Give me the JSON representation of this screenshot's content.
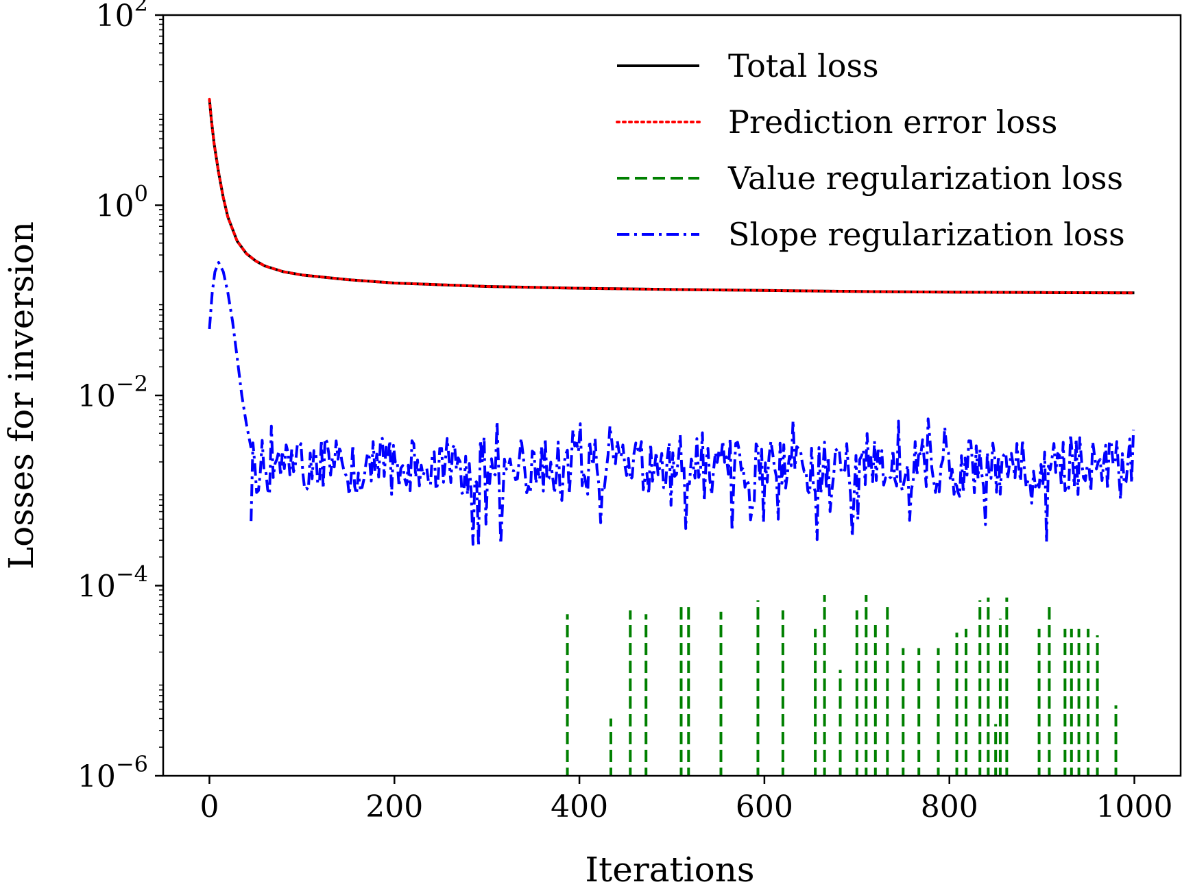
{
  "chart_data": {
    "type": "line",
    "xlabel": "Iterations",
    "ylabel": "Losses for inversion",
    "x_scale": "linear",
    "y_scale": "log",
    "xlim": [
      -50,
      1050
    ],
    "ylim": [
      1e-06,
      100
    ],
    "x_ticks": [
      0,
      200,
      400,
      600,
      800,
      1000
    ],
    "x_tick_labels": [
      "0",
      "200",
      "400",
      "600",
      "800",
      "1000"
    ],
    "y_ticks": [
      1e-06,
      0.0001,
      0.01,
      1,
      100
    ],
    "y_tick_labels": [
      {
        "base": "10",
        "exp": "−6"
      },
      {
        "base": "10",
        "exp": "−4"
      },
      {
        "base": "10",
        "exp": "−2"
      },
      {
        "base": "10",
        "exp": "0"
      },
      {
        "base": "10",
        "exp": "2"
      }
    ],
    "grid": false,
    "legend_position": "top-right",
    "series": [
      {
        "name": "Total loss",
        "color": "#000000",
        "style": "solid",
        "x": [
          0,
          2,
          5,
          10,
          15,
          20,
          30,
          40,
          50,
          60,
          80,
          100,
          150,
          200,
          300,
          400,
          500,
          600,
          700,
          800,
          900,
          1000
        ],
        "y": [
          13,
          8,
          4.5,
          2.2,
          1.2,
          0.75,
          0.42,
          0.31,
          0.26,
          0.23,
          0.2,
          0.185,
          0.165,
          0.152,
          0.14,
          0.134,
          0.13,
          0.127,
          0.124,
          0.122,
          0.121,
          0.12
        ]
      },
      {
        "name": "Prediction error loss",
        "color": "#ff0000",
        "style": "dotted",
        "x": [
          0,
          2,
          5,
          10,
          15,
          20,
          30,
          40,
          50,
          60,
          80,
          100,
          150,
          200,
          300,
          400,
          500,
          600,
          700,
          800,
          900,
          1000
        ],
        "y": [
          13,
          8,
          4.5,
          2.2,
          1.2,
          0.75,
          0.42,
          0.31,
          0.26,
          0.23,
          0.2,
          0.185,
          0.165,
          0.152,
          0.14,
          0.134,
          0.13,
          0.127,
          0.124,
          0.122,
          0.121,
          0.12
        ]
      },
      {
        "name": "Value regularization loss",
        "color": "#008000",
        "style": "dashed",
        "spikes": [
          {
            "x": 387,
            "y": 5e-05
          },
          {
            "x": 434,
            "y": 4e-06
          },
          {
            "x": 455,
            "y": 5.5e-05
          },
          {
            "x": 472,
            "y": 5e-05
          },
          {
            "x": 510,
            "y": 6e-05
          },
          {
            "x": 518,
            "y": 6e-05
          },
          {
            "x": 553,
            "y": 5.3e-05
          },
          {
            "x": 593,
            "y": 7e-05
          },
          {
            "x": 620,
            "y": 5.5e-05
          },
          {
            "x": 655,
            "y": 3.5e-05
          },
          {
            "x": 665,
            "y": 8e-05
          },
          {
            "x": 682,
            "y": 1.3e-05
          },
          {
            "x": 700,
            "y": 5.5e-05
          },
          {
            "x": 710,
            "y": 8e-05
          },
          {
            "x": 720,
            "y": 4e-05
          },
          {
            "x": 733,
            "y": 6e-05
          },
          {
            "x": 750,
            "y": 2.2e-05
          },
          {
            "x": 767,
            "y": 2.2e-05
          },
          {
            "x": 788,
            "y": 2.2e-05
          },
          {
            "x": 808,
            "y": 3.2e-05
          },
          {
            "x": 818,
            "y": 3.5e-05
          },
          {
            "x": 833,
            "y": 7e-05
          },
          {
            "x": 842,
            "y": 7.5e-05
          },
          {
            "x": 850,
            "y": 3.5e-06
          },
          {
            "x": 855,
            "y": 4.5e-05
          },
          {
            "x": 862,
            "y": 7.5e-05
          },
          {
            "x": 897,
            "y": 3.5e-05
          },
          {
            "x": 908,
            "y": 6.5e-05
          },
          {
            "x": 925,
            "y": 3.5e-05
          },
          {
            "x": 932,
            "y": 3.5e-05
          },
          {
            "x": 940,
            "y": 3.5e-05
          },
          {
            "x": 950,
            "y": 3.5e-05
          },
          {
            "x": 960,
            "y": 3e-05
          },
          {
            "x": 980,
            "y": 5.5e-06
          }
        ]
      },
      {
        "name": "Slope regularization loss",
        "color": "#0000ff",
        "style": "dashdot",
        "x": [
          0,
          3,
          6,
          10,
          15,
          20,
          25,
          30,
          35,
          40,
          45
        ],
        "y": [
          0.05,
          0.12,
          0.2,
          0.25,
          0.2,
          0.12,
          0.06,
          0.025,
          0.01,
          0.005,
          0.0028
        ],
        "noise_segment": {
          "x_start": 45,
          "x_end": 1000,
          "median": 0.0018,
          "min": 0.00025,
          "max": 0.006
        }
      }
    ]
  }
}
